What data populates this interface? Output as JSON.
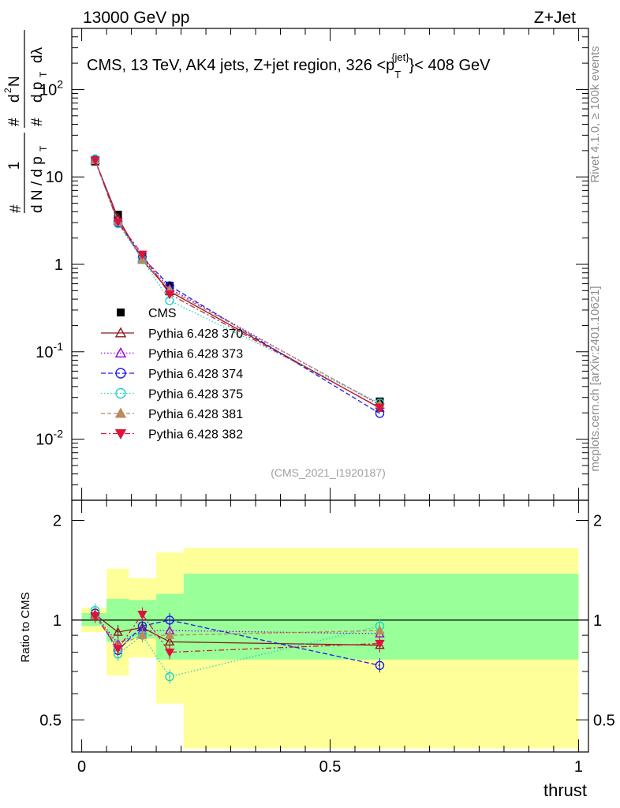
{
  "header": {
    "left": "13000 GeV pp",
    "right": "Z+Jet"
  },
  "side_text": {
    "rivet": "Rivet 4.1.0, ≥ 100k events",
    "mcplots": "mcplots.cern.ch [arXiv:2401.10621]"
  },
  "chart_data": {
    "type": "line",
    "title": "CMS, 13 TeV, AK4 jets, Z+jet region, 326 <p",
    "title_sup": "{jet}",
    "title_sub": "T",
    "title_tail": "}< 408 GeV",
    "analysis_id": "(CMS_2021_I1920187)",
    "xlabel": "thrust",
    "ylabel_main": "1/N dN/dp_T dλ",
    "ylabel_ratio": "Ratio to CMS",
    "xlim": [
      -0.02,
      1.02
    ],
    "ylim_main": [
      0.002,
      500
    ],
    "ylim_ratio": [
      0.4,
      2.3
    ],
    "yscale_main": "log",
    "yscale_ratio": "log",
    "x_ticks": [
      "0",
      "0.5",
      "1"
    ],
    "y_ticks_main": [
      "10^-2",
      "10^-1",
      "1",
      "10",
      "10^2"
    ],
    "y_ticks_ratio": [
      "0.5",
      "1",
      "2"
    ],
    "legend_position": "middle-left",
    "x": [
      0.027,
      0.073,
      0.122,
      0.177,
      0.6
    ],
    "bins": [
      [
        0.0,
        0.05
      ],
      [
        0.05,
        0.095
      ],
      [
        0.095,
        0.15
      ],
      [
        0.15,
        0.205
      ],
      [
        0.205,
        1.0
      ]
    ],
    "reference": {
      "name": "CMS",
      "values": [
        15.0,
        3.7,
        1.25,
        0.57,
        0.027
      ],
      "band_inner": [
        [
          0.96,
          1.05
        ],
        [
          0.86,
          1.16
        ],
        [
          0.88,
          1.15
        ],
        [
          0.76,
          1.2
        ],
        [
          0.76,
          1.38
        ]
      ],
      "band_outer": [
        [
          0.92,
          1.09
        ],
        [
          0.68,
          1.43
        ],
        [
          0.77,
          1.34
        ],
        [
          0.56,
          1.6
        ],
        [
          0.41,
          1.65
        ]
      ]
    },
    "series": [
      {
        "name": "Pythia 6.428 370",
        "color": "#8b1a1a",
        "marker": "triangle-up-open",
        "dash": "",
        "values": [
          15.5,
          3.4,
          1.12,
          0.49,
          0.0227
        ],
        "ratio": [
          1.04,
          0.92,
          0.95,
          0.86,
          0.84
        ]
      },
      {
        "name": "Pythia 6.428 373",
        "color": "#9400d3",
        "marker": "triangle-up-open",
        "dash": "1.5,2.5",
        "values": [
          15.6,
          3.15,
          1.17,
          0.53,
          0.0246
        ],
        "ratio": [
          1.04,
          0.85,
          0.93,
          0.93,
          0.91
        ]
      },
      {
        "name": "Pythia 6.428 374",
        "color": "#1e1ee6",
        "marker": "circle-open",
        "dash": "6,3",
        "values": [
          15.7,
          3.0,
          1.2,
          0.57,
          0.0197
        ],
        "ratio": [
          1.05,
          0.81,
          0.96,
          1.0,
          0.73
        ]
      },
      {
        "name": "Pythia 6.428 375",
        "color": "#1ed2c8",
        "marker": "circle-open",
        "dash": "1.5,2.5",
        "values": [
          16.1,
          2.92,
          1.13,
          0.385,
          0.0259
        ],
        "ratio": [
          1.07,
          0.79,
          0.9,
          0.675,
          0.96
        ]
      },
      {
        "name": "Pythia 6.428 381",
        "color": "#b98b5e",
        "marker": "triangle-up-filled",
        "dash": "5,3",
        "values": [
          15.4,
          3.1,
          1.13,
          0.51,
          0.025
        ],
        "ratio": [
          1.03,
          0.84,
          0.9,
          0.9,
          0.93
        ]
      },
      {
        "name": "Pythia 6.428 382",
        "color": "#dc143c",
        "marker": "triangle-down-filled",
        "dash": "7,3,2,3",
        "values": [
          15.5,
          3.05,
          1.3,
          0.455,
          0.023
        ],
        "ratio": [
          1.03,
          0.82,
          1.04,
          0.8,
          0.85
        ]
      }
    ]
  },
  "colors": {
    "inner_band": "#99ff99",
    "outer_band": "#ffff99",
    "reference": "#000000"
  }
}
